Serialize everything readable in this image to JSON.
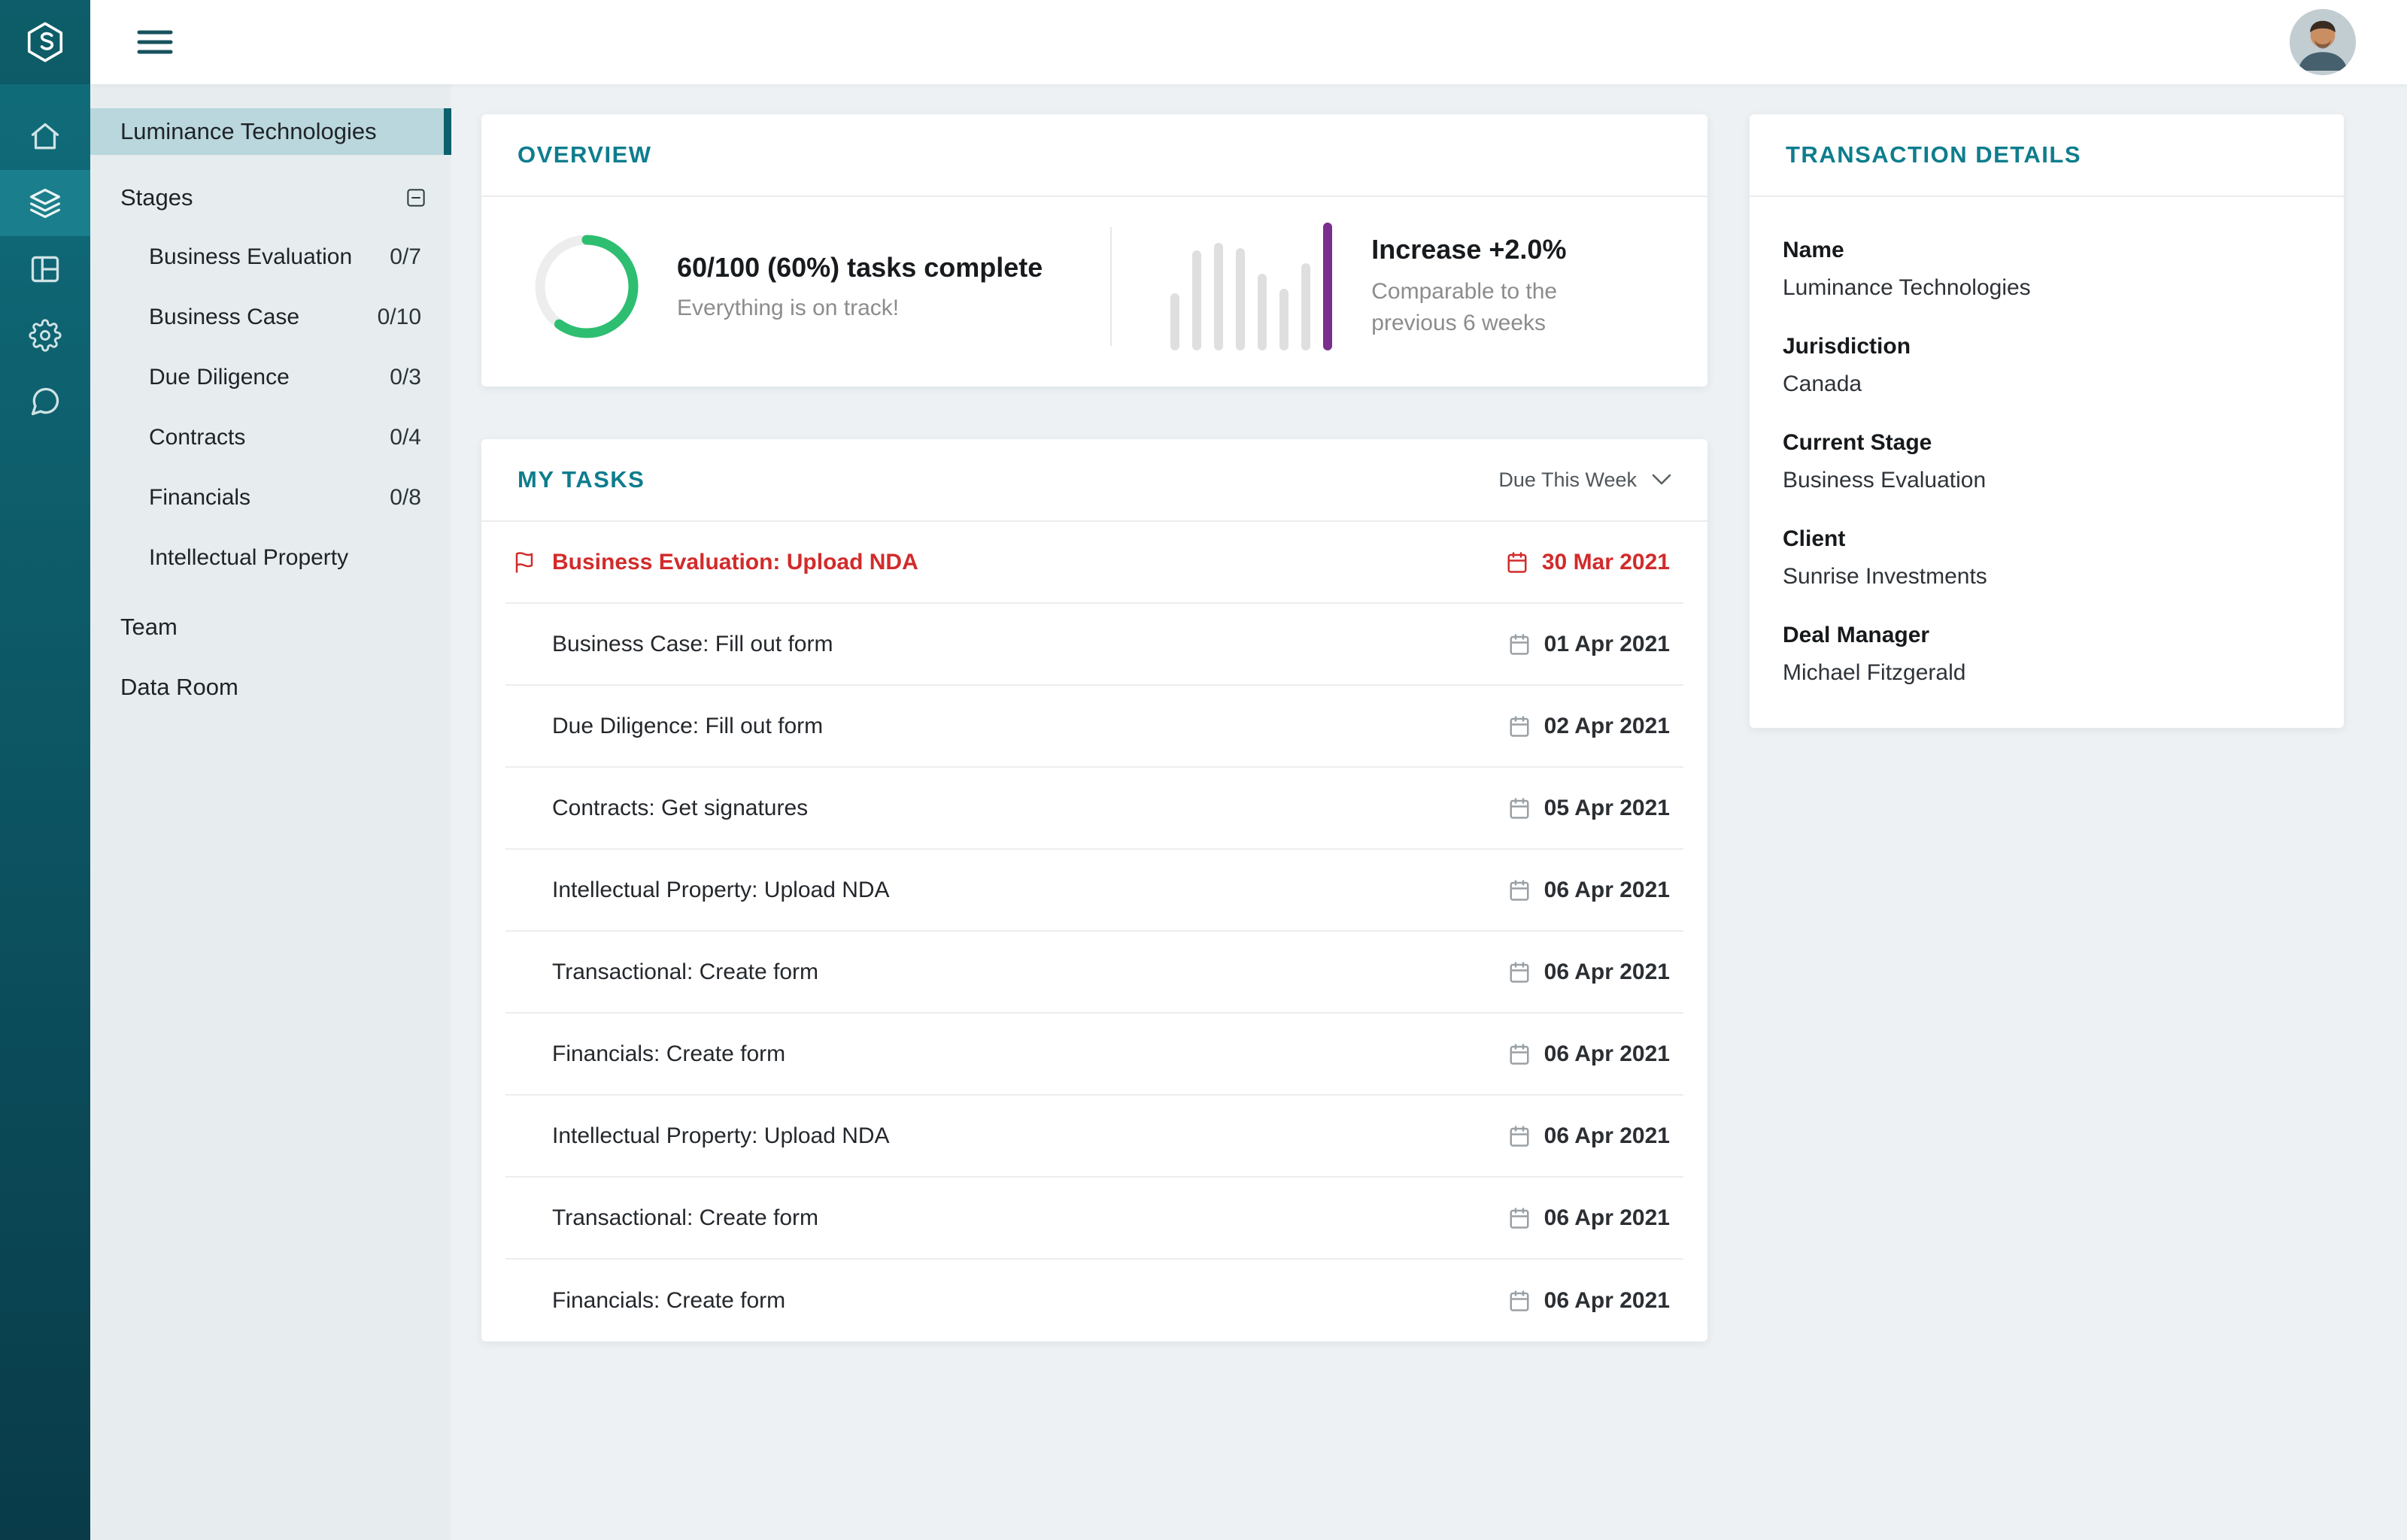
{
  "colors": {
    "accent_teal": "#0E7D8D",
    "urgent_red": "#D22B2B",
    "progress_green": "#2EBE71",
    "trend_purple": "#7A2E8E",
    "sidebar_selected_bg": "#B9D7DC"
  },
  "topbar": {
    "menu_icon": "hamburger-menu",
    "avatar": "user-avatar-photo"
  },
  "rail": {
    "logo": "luminance-logo",
    "items": [
      {
        "name": "home",
        "icon": "home-icon",
        "active": false
      },
      {
        "name": "stages",
        "icon": "layers-icon",
        "active": true
      },
      {
        "name": "board",
        "icon": "table-icon",
        "active": false
      },
      {
        "name": "settings",
        "icon": "gear-icon",
        "active": false
      },
      {
        "name": "messages",
        "icon": "chat-icon",
        "active": false
      }
    ]
  },
  "sidebar": {
    "project_name": "Luminance Technologies",
    "stages": {
      "label": "Stages",
      "collapse_icon": "minus-square-icon",
      "items": [
        {
          "label": "Business Evaluation",
          "count": "0/7"
        },
        {
          "label": "Business Case",
          "count": "0/10"
        },
        {
          "label": "Due Diligence",
          "count": "0/3"
        },
        {
          "label": "Contracts",
          "count": "0/4"
        },
        {
          "label": "Financials",
          "count": "0/8"
        },
        {
          "label": "Intellectual Property",
          "count": ""
        }
      ]
    },
    "team_label": "Team",
    "data_room_label": "Data Room"
  },
  "overview": {
    "title": "OVERVIEW",
    "progress": {
      "percent": 60,
      "headline": "60/100 (60%) tasks complete",
      "subtext": "Everything is on track!"
    },
    "trend": {
      "headline": "Increase +2.0%",
      "subtext": "Comparable to the previous 6 weeks",
      "highlight_color": "#7A2E8E",
      "bars": [
        {
          "height": 45
        },
        {
          "height": 78
        },
        {
          "height": 84
        },
        {
          "height": 80
        },
        {
          "height": 60
        },
        {
          "height": 48
        },
        {
          "height": 68
        },
        {
          "height": 100,
          "highlight": true
        }
      ]
    }
  },
  "tasks": {
    "title": "MY TASKS",
    "filter_label": "Due This Week",
    "items": [
      {
        "label": "Business Evaluation: Upload NDA",
        "date": "30 Mar 2021",
        "urgent": true
      },
      {
        "label": "Business Case: Fill out form",
        "date": "01 Apr 2021",
        "urgent": false
      },
      {
        "label": "Due Diligence: Fill out form",
        "date": "02 Apr 2021",
        "urgent": false
      },
      {
        "label": "Contracts: Get signatures",
        "date": "05 Apr 2021",
        "urgent": false
      },
      {
        "label": "Intellectual Property: Upload NDA",
        "date": "06 Apr 2021",
        "urgent": false
      },
      {
        "label": "Transactional: Create form",
        "date": "06 Apr 2021",
        "urgent": false
      },
      {
        "label": "Financials: Create form",
        "date": "06 Apr 2021",
        "urgent": false
      },
      {
        "label": "Intellectual Property: Upload NDA",
        "date": "06 Apr 2021",
        "urgent": false
      },
      {
        "label": "Transactional: Create form",
        "date": "06 Apr 2021",
        "urgent": false
      },
      {
        "label": "Financials: Create form",
        "date": "06 Apr 2021",
        "urgent": false
      }
    ]
  },
  "details": {
    "title": "TRANSACTION DETAILS",
    "fields": [
      {
        "label": "Name",
        "value": "Luminance Technologies"
      },
      {
        "label": "Jurisdiction",
        "value": "Canada"
      },
      {
        "label": "Current Stage",
        "value": "Business Evaluation"
      },
      {
        "label": "Client",
        "value": "Sunrise Investments"
      },
      {
        "label": "Deal Manager",
        "value": "Michael Fitzgerald"
      }
    ]
  }
}
